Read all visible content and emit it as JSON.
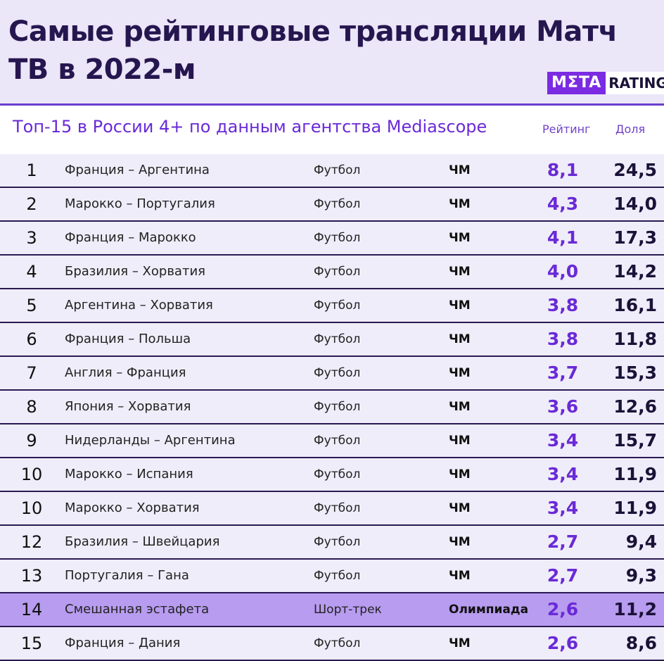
{
  "header": {
    "title": "Самые рейтинговые трансляции Матч ТВ в 2022-м",
    "logo_meta": "MΣTA",
    "logo_ratings": "RATINGS"
  },
  "subheader": {
    "subtitle": "Топ-15 в России 4+ по данным агентства Mediascope",
    "col_rating": "Рейтинг",
    "col_share": "Доля"
  },
  "colors": {
    "accent": "#6a2ad7",
    "header_bg": "#ebe6f8",
    "row_bg": "#efedf9",
    "highlight_bg": "#b89cf0",
    "title": "#26164f"
  },
  "chart_data": {
    "type": "table",
    "title": "Самые рейтинговые трансляции Матч ТВ в 2022-м",
    "subtitle": "Топ-15 в России 4+ по данным агентства Mediascope",
    "columns": [
      "",
      "",
      "",
      "",
      "Рейтинг",
      "Доля"
    ],
    "rows": [
      {
        "rank": "1",
        "match": "Франция – Аргентина",
        "sport": "Футбол",
        "event": "ЧМ",
        "rating": "8,1",
        "share": "24,5"
      },
      {
        "rank": "2",
        "match": "Марокко – Португалия",
        "sport": "Футбол",
        "event": "ЧМ",
        "rating": "4,3",
        "share": "14,0"
      },
      {
        "rank": "3",
        "match": "Франция – Марокко",
        "sport": "Футбол",
        "event": "ЧМ",
        "rating": "4,1",
        "share": "17,3"
      },
      {
        "rank": "4",
        "match": "Бразилия – Хорватия",
        "sport": "Футбол",
        "event": "ЧМ",
        "rating": "4,0",
        "share": "14,2"
      },
      {
        "rank": "5",
        "match": "Аргентина – Хорватия",
        "sport": "Футбол",
        "event": "ЧМ",
        "rating": "3,8",
        "share": "16,1"
      },
      {
        "rank": "6",
        "match": "Франция – Польша",
        "sport": "Футбол",
        "event": "ЧМ",
        "rating": "3,8",
        "share": "11,8"
      },
      {
        "rank": "7",
        "match": "Англия – Франция",
        "sport": "Футбол",
        "event": "ЧМ",
        "rating": "3,7",
        "share": "15,3"
      },
      {
        "rank": "8",
        "match": "Япония – Хорватия",
        "sport": "Футбол",
        "event": "ЧМ",
        "rating": "3,6",
        "share": "12,6"
      },
      {
        "rank": "9",
        "match": "Нидерланды – Аргентина",
        "sport": "Футбол",
        "event": "ЧМ",
        "rating": "3,4",
        "share": "15,7"
      },
      {
        "rank": "10",
        "match": "Марокко – Испания",
        "sport": "Футбол",
        "event": "ЧМ",
        "rating": "3,4",
        "share": "11,9"
      },
      {
        "rank": "10",
        "match": "Марокко – Хорватия",
        "sport": "Футбол",
        "event": "ЧМ",
        "rating": "3,4",
        "share": "11,9"
      },
      {
        "rank": "12",
        "match": "Бразилия – Швейцария",
        "sport": "Футбол",
        "event": "ЧМ",
        "rating": "2,7",
        "share": "9,4"
      },
      {
        "rank": "13",
        "match": "Португалия – Гана",
        "sport": "Футбол",
        "event": "ЧМ",
        "rating": "2,7",
        "share": "9,3"
      },
      {
        "rank": "14",
        "match": "Смешанная эстафета",
        "sport": "Шорт-трек",
        "event": "Олимпиада",
        "rating": "2,6",
        "share": "11,2",
        "highlight": true
      },
      {
        "rank": "15",
        "match": "Франция – Дания",
        "sport": "Футбол",
        "event": "ЧМ",
        "rating": "2,6",
        "share": "8,6"
      }
    ]
  }
}
